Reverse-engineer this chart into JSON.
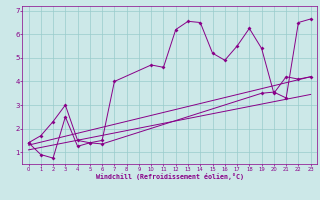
{
  "xlabel": "Windchill (Refroidissement éolien,°C)",
  "bg_color": "#cce8e8",
  "line_color": "#880088",
  "xlim": [
    -0.5,
    23.5
  ],
  "ylim": [
    0.5,
    7.2
  ],
  "xticks": [
    0,
    1,
    2,
    3,
    4,
    5,
    6,
    7,
    8,
    9,
    10,
    11,
    12,
    13,
    14,
    15,
    16,
    17,
    18,
    19,
    20,
    21,
    22,
    23
  ],
  "yticks": [
    1,
    2,
    3,
    4,
    5,
    6,
    7
  ],
  "grid_color": "#99cccc",
  "line1_x": [
    0,
    1,
    2,
    3,
    4,
    5,
    6,
    7,
    10,
    11,
    12,
    13,
    14,
    15,
    16,
    17,
    18,
    19,
    20,
    21,
    22,
    23
  ],
  "line1_y": [
    1.4,
    1.7,
    2.3,
    3.0,
    1.5,
    1.4,
    1.5,
    4.0,
    4.7,
    4.6,
    6.2,
    6.55,
    6.5,
    5.2,
    4.9,
    5.5,
    6.25,
    5.4,
    3.5,
    4.2,
    4.1,
    4.2
  ],
  "line2_x": [
    0,
    1,
    2,
    3,
    4,
    5,
    6,
    19,
    20,
    21,
    22,
    23
  ],
  "line2_y": [
    1.4,
    0.9,
    0.75,
    2.5,
    1.25,
    1.4,
    1.35,
    3.5,
    3.55,
    3.3,
    6.5,
    6.65
  ],
  "trend1_x": [
    0,
    23
  ],
  "trend1_y": [
    1.3,
    4.2
  ],
  "trend2_x": [
    0,
    23
  ],
  "trend2_y": [
    1.1,
    3.45
  ]
}
